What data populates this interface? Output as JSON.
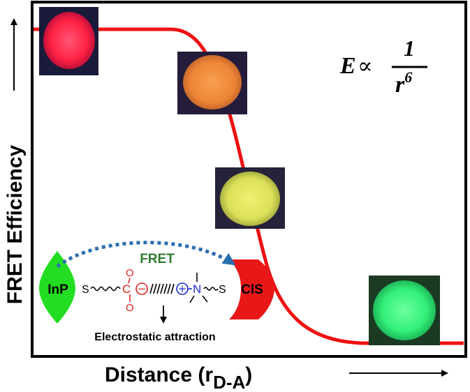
{
  "axes": {
    "ylabel": "FRET Efficiency",
    "xlabel_main": "Distance (r",
    "xlabel_sub": "D-A",
    "xlabel_close": ")"
  },
  "equation": {
    "lhs": "E",
    "relation": "∝",
    "numerator": "1",
    "denominator_base": "r",
    "denominator_exp": "6"
  },
  "scheme": {
    "donor_label": "InP",
    "acceptor_label": "CIS",
    "transfer_label": "FRET",
    "linker_atom_left": "S",
    "linker_atom_right": "S",
    "carboxyl_oxygen_top": "O",
    "carboxyl_oxygen_bottom": "O",
    "carboxyl_carbon": "C",
    "anion_sign": "−",
    "cation_sign": "+",
    "amine_atom": "N",
    "attraction_label": "Electrostatic attraction"
  },
  "colors": {
    "curve": "#ee1111",
    "donor": "#22dd22",
    "acceptor": "#e81818",
    "fret_arrow": "#2a6fb0",
    "fret_text": "#2f7a2f",
    "anion": "#dd2222",
    "cation": "#1a2ad0"
  },
  "emission_swatches": [
    {
      "name": "red",
      "color": "#ff2a55"
    },
    {
      "name": "orange",
      "color": "#f08a3c"
    },
    {
      "name": "yellow",
      "color": "#e2e45a"
    },
    {
      "name": "green",
      "color": "#33f07a"
    }
  ]
}
